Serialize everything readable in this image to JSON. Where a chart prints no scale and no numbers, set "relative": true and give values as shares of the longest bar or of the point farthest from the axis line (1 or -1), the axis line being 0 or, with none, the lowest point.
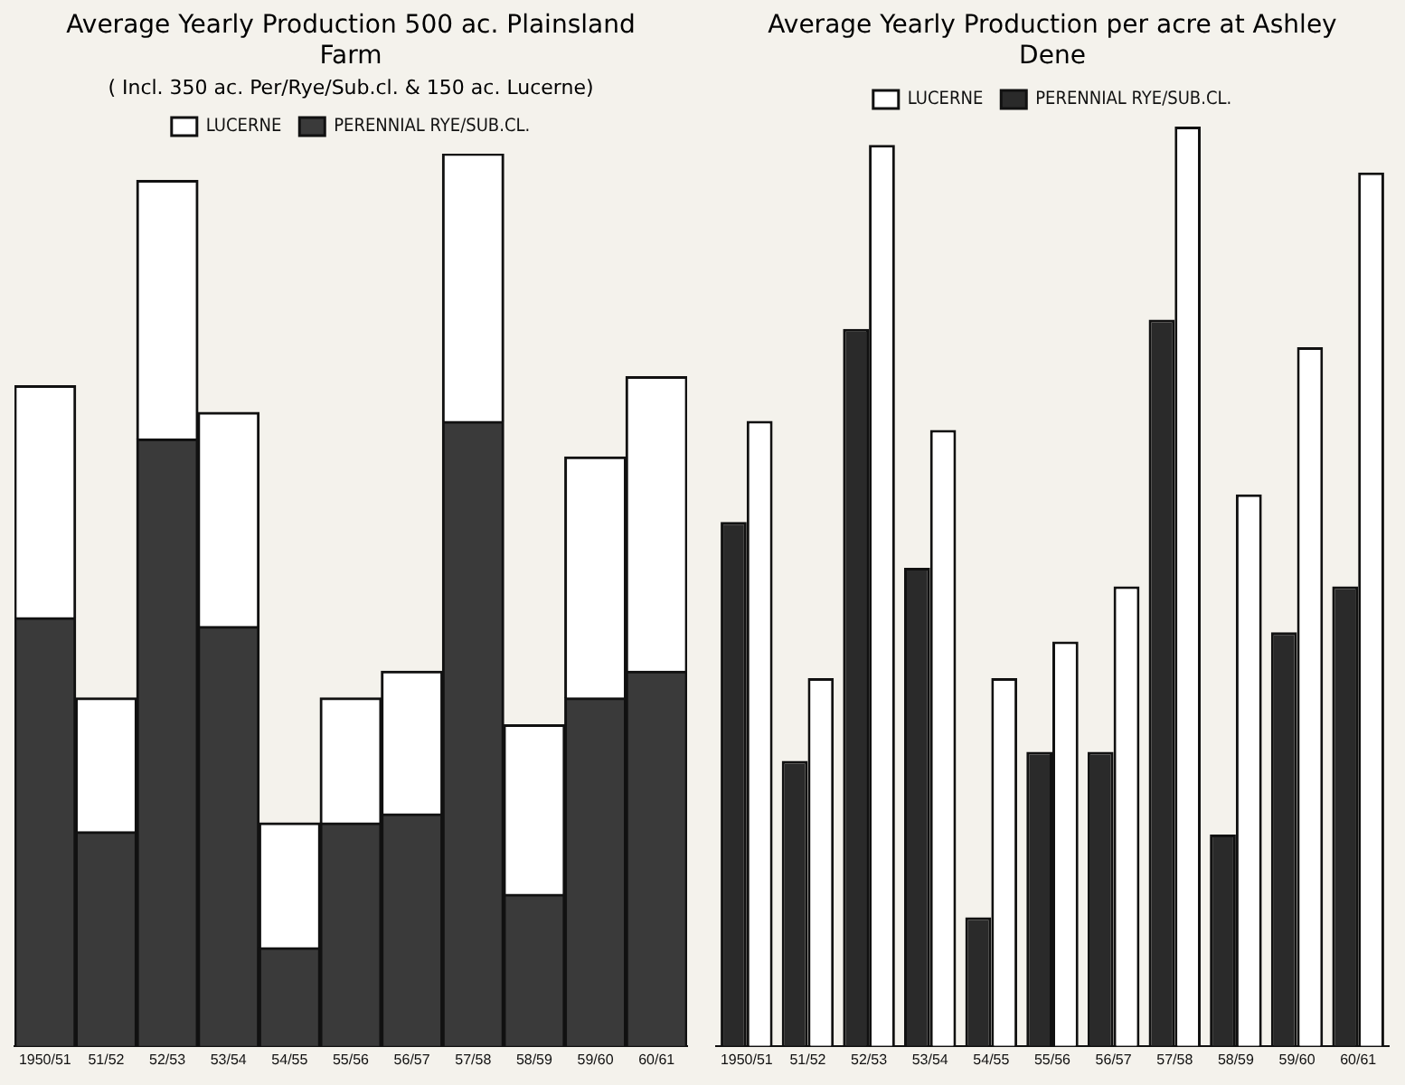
{
  "chart_data": [
    {
      "type": "bar",
      "title": "Average Yearly Production 500 ac. Plainsland Farm",
      "subtitle": "( Incl. 350 ac. Per/Rye/Sub.cl. & 150 ac. Lucerne)",
      "relative": true,
      "stacked": true,
      "legend": "top",
      "categories": [
        "1950/51",
        "51/52",
        "52/53",
        "53/54",
        "54/55",
        "55/56",
        "56/57",
        "57/58",
        "58/59",
        "59/60",
        "60/61"
      ],
      "series": [
        {
          "name": "PERENNIAL RYE/SUB.CL.",
          "color": "#3a3a3a",
          "values": [
            0.48,
            0.24,
            0.68,
            0.47,
            0.11,
            0.25,
            0.26,
            0.7,
            0.17,
            0.39,
            0.42
          ]
        },
        {
          "name": "LUCERNE",
          "color": "#ffffff",
          "values": [
            0.26,
            0.15,
            0.29,
            0.24,
            0.14,
            0.14,
            0.16,
            0.3,
            0.19,
            0.27,
            0.33
          ]
        }
      ]
    },
    {
      "type": "bar",
      "title": "Average Yearly Production per acre at Ashley Dene",
      "relative": true,
      "legend": "top",
      "categories": [
        "1950/51",
        "51/52",
        "52/53",
        "53/54",
        "54/55",
        "55/56",
        "56/57",
        "57/58",
        "58/59",
        "59/60",
        "60/61"
      ],
      "series": [
        {
          "name": "PERENNIAL RYE/SUB.CL.",
          "color": "#2a2a2a",
          "values": [
            0.57,
            0.31,
            0.78,
            0.52,
            0.14,
            0.32,
            0.32,
            0.79,
            0.23,
            0.45,
            0.5
          ]
        },
        {
          "name": "LUCERNE",
          "color": "#ffffff",
          "values": [
            0.68,
            0.4,
            0.98,
            0.67,
            0.4,
            0.44,
            0.5,
            1.0,
            0.6,
            0.76,
            0.95
          ]
        }
      ]
    }
  ]
}
